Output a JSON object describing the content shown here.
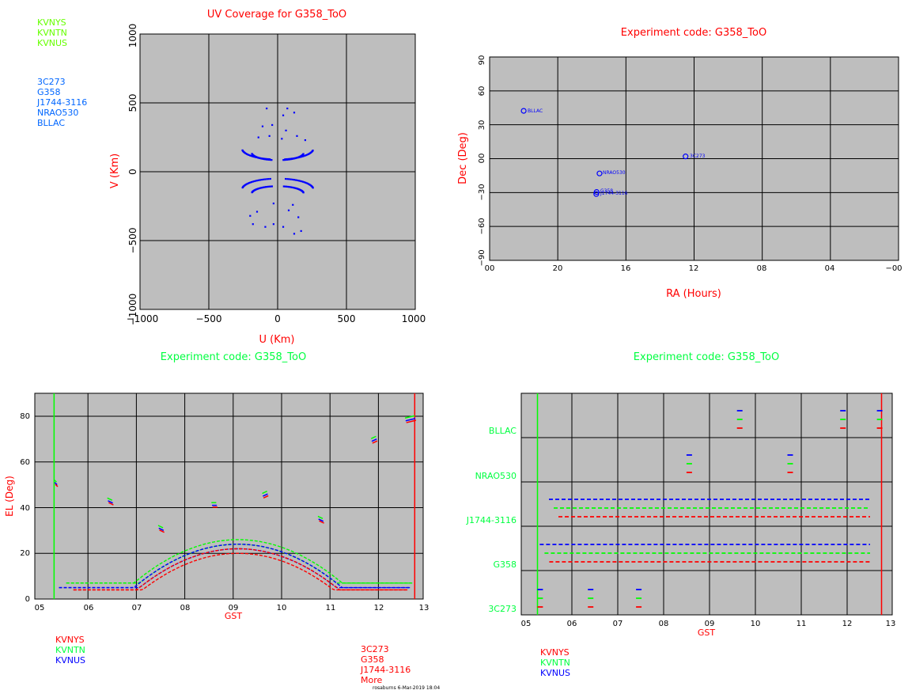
{
  "colors": {
    "red": "#ff0000",
    "green": "#00ff00",
    "blue": "#0000ff",
    "panel_bg": "#bebebe",
    "light_blue": "#0066ff",
    "light_green": "#66ff00",
    "title_green": "#00ff66"
  },
  "uv": {
    "title": "UV Coverage for G358_ToO",
    "antennas": [
      "KVNYS",
      "KVNTN",
      "KVNUS"
    ],
    "sources": [
      "3C273",
      "G358",
      "J1744-3116",
      "NRAO530",
      "BLLAC"
    ],
    "xlabel": "U (Km)",
    "ylabel": "V (Km)",
    "xticks": [
      "−1000",
      "−500",
      "0",
      "500",
      "1000"
    ],
    "yticks": [
      "−1000",
      "−500",
      "0",
      "500",
      "1000"
    ]
  },
  "sky": {
    "title": "Experiment code: G358_ToO",
    "xlabel": "RA (Hours)",
    "ylabel": "Dec (Deg)",
    "xticks": [
      "00",
      "20",
      "16",
      "12",
      "08",
      "04",
      "−00"
    ],
    "yticks": [
      "90",
      "60",
      "30",
      "00",
      "−30",
      "−60",
      "−90"
    ],
    "src_labels": [
      "BLLAC",
      "3C273",
      "NRAO530",
      "G358",
      "J1744-3116"
    ]
  },
  "el": {
    "title": "Experiment code: G358_ToO",
    "xlabel": "GST",
    "ylabel": "EL (Deg)",
    "xticks": [
      "05",
      "06",
      "07",
      "08",
      "09",
      "10",
      "11",
      "12",
      "13"
    ],
    "yticks": [
      "0",
      "20",
      "40",
      "60",
      "80"
    ],
    "antennas": [
      "KVNYS",
      "KVNTN",
      "KVNUS"
    ],
    "sources": [
      "3C273",
      "G358",
      "J1744-3116",
      "More"
    ],
    "footer": "rosaburns  6-Mar-2019 18:04"
  },
  "sched": {
    "title": "Experiment code: G358_ToO",
    "xlabel": "GST",
    "xticks": [
      "05",
      "06",
      "07",
      "08",
      "09",
      "10",
      "11",
      "12",
      "13"
    ],
    "rows": [
      "BLLAC",
      "NRAO530",
      "J1744-3116",
      "G358",
      "3C273"
    ],
    "antennas": [
      "KVNYS",
      "KVNTN",
      "KVNUS"
    ]
  },
  "chart_data": [
    {
      "type": "scatter",
      "title": "UV Coverage for G358_ToO",
      "xlabel": "U (Km)",
      "ylabel": "V (Km)",
      "xlim": [
        -1000,
        1000
      ],
      "ylim": [
        -1000,
        1000
      ],
      "grid": true,
      "tracks_upper_arcs": [
        {
          "center": [
            0,
            170
          ],
          "rx": 250,
          "ry": 80
        },
        {
          "center": [
            0,
            140
          ],
          "rx": 180,
          "ry": 55
        }
      ],
      "tracks_lower_arcs": [
        {
          "center": [
            0,
            -130
          ],
          "rx": 250,
          "ry": 80
        },
        {
          "center": [
            0,
            -160
          ],
          "rx": 180,
          "ry": 55
        }
      ]
    },
    {
      "type": "scatter",
      "title": "Experiment code: G358_ToO",
      "xlabel": "RA (Hours)",
      "ylabel": "Dec (Deg)",
      "xlim": [
        24,
        0
      ],
      "ylim": [
        -90,
        90
      ],
      "grid": true,
      "points": [
        {
          "name": "BLLAC",
          "ra": 22.0,
          "dec": 42.3
        },
        {
          "name": "3C273",
          "ra": 12.5,
          "dec": 2.0
        },
        {
          "name": "NRAO530",
          "ra": 17.55,
          "dec": -13.1
        },
        {
          "name": "G358",
          "ra": 17.72,
          "dec": -29.5
        },
        {
          "name": "J1744-3116",
          "ra": 17.74,
          "dec": -31.3
        }
      ]
    },
    {
      "type": "line",
      "title": "Experiment code: G358_ToO",
      "xlabel": "GST",
      "ylabel": "EL (Deg)",
      "xlim": [
        5,
        13
      ],
      "ylim": [
        0,
        90
      ],
      "grid": true,
      "series": [
        {
          "name": "KVNYS",
          "color": "#ff0000"
        },
        {
          "name": "KVNTN",
          "color": "#00ff00"
        },
        {
          "name": "KVNUS",
          "color": "#0000ff"
        }
      ],
      "segments": [
        {
          "x": [
            5.3,
            5.35
          ],
          "y": [
            51,
            50
          ]
        },
        {
          "x": [
            6.4,
            6.5
          ],
          "y": [
            43,
            42
          ]
        },
        {
          "x": [
            7.45,
            7.55
          ],
          "y": [
            31,
            30
          ]
        },
        {
          "x": [
            8.55,
            8.65
          ],
          "y": [
            41,
            41
          ]
        },
        {
          "x": [
            9.6,
            9.7
          ],
          "y": [
            45,
            46
          ]
        },
        {
          "x": [
            10.75,
            10.85
          ],
          "y": [
            35,
            34
          ]
        },
        {
          "x": [
            11.85,
            11.95
          ],
          "y": [
            69,
            70
          ]
        },
        {
          "x": [
            12.55,
            12.75
          ],
          "y": [
            78,
            79
          ]
        }
      ],
      "arc_peaks": [
        {
          "name": "KVNTN",
          "peak_x": 9.1,
          "peak_y": 26
        },
        {
          "name": "KVNUS",
          "peak_x": 9.1,
          "peak_y": 24
        },
        {
          "name": "KVNYS",
          "peak_x": 9.1,
          "peak_y": 22
        }
      ],
      "markers": [
        {
          "name": "start",
          "x": 5.3,
          "color": "#00ff00"
        },
        {
          "name": "end",
          "x": 12.75,
          "color": "#ff0000"
        }
      ]
    },
    {
      "type": "table",
      "title": "Experiment code: G358_ToO",
      "xlabel": "GST",
      "xlim": [
        5,
        13
      ],
      "rows": [
        "BLLAC",
        "NRAO530",
        "J1744-3116",
        "G358",
        "3C273"
      ],
      "scans": [
        {
          "source": "3C273",
          "x": [
            5.3,
            6.4,
            7.45
          ]
        },
        {
          "source": "NRAO530",
          "x": [
            8.55,
            10.75
          ]
        },
        {
          "source": "BLLAC",
          "x": [
            9.65,
            11.9,
            12.7
          ]
        },
        {
          "source": "J1744-3116",
          "x_range": [
            5.5,
            12.5
          ]
        },
        {
          "source": "G358",
          "x_range": [
            5.3,
            12.5
          ]
        }
      ]
    }
  ]
}
